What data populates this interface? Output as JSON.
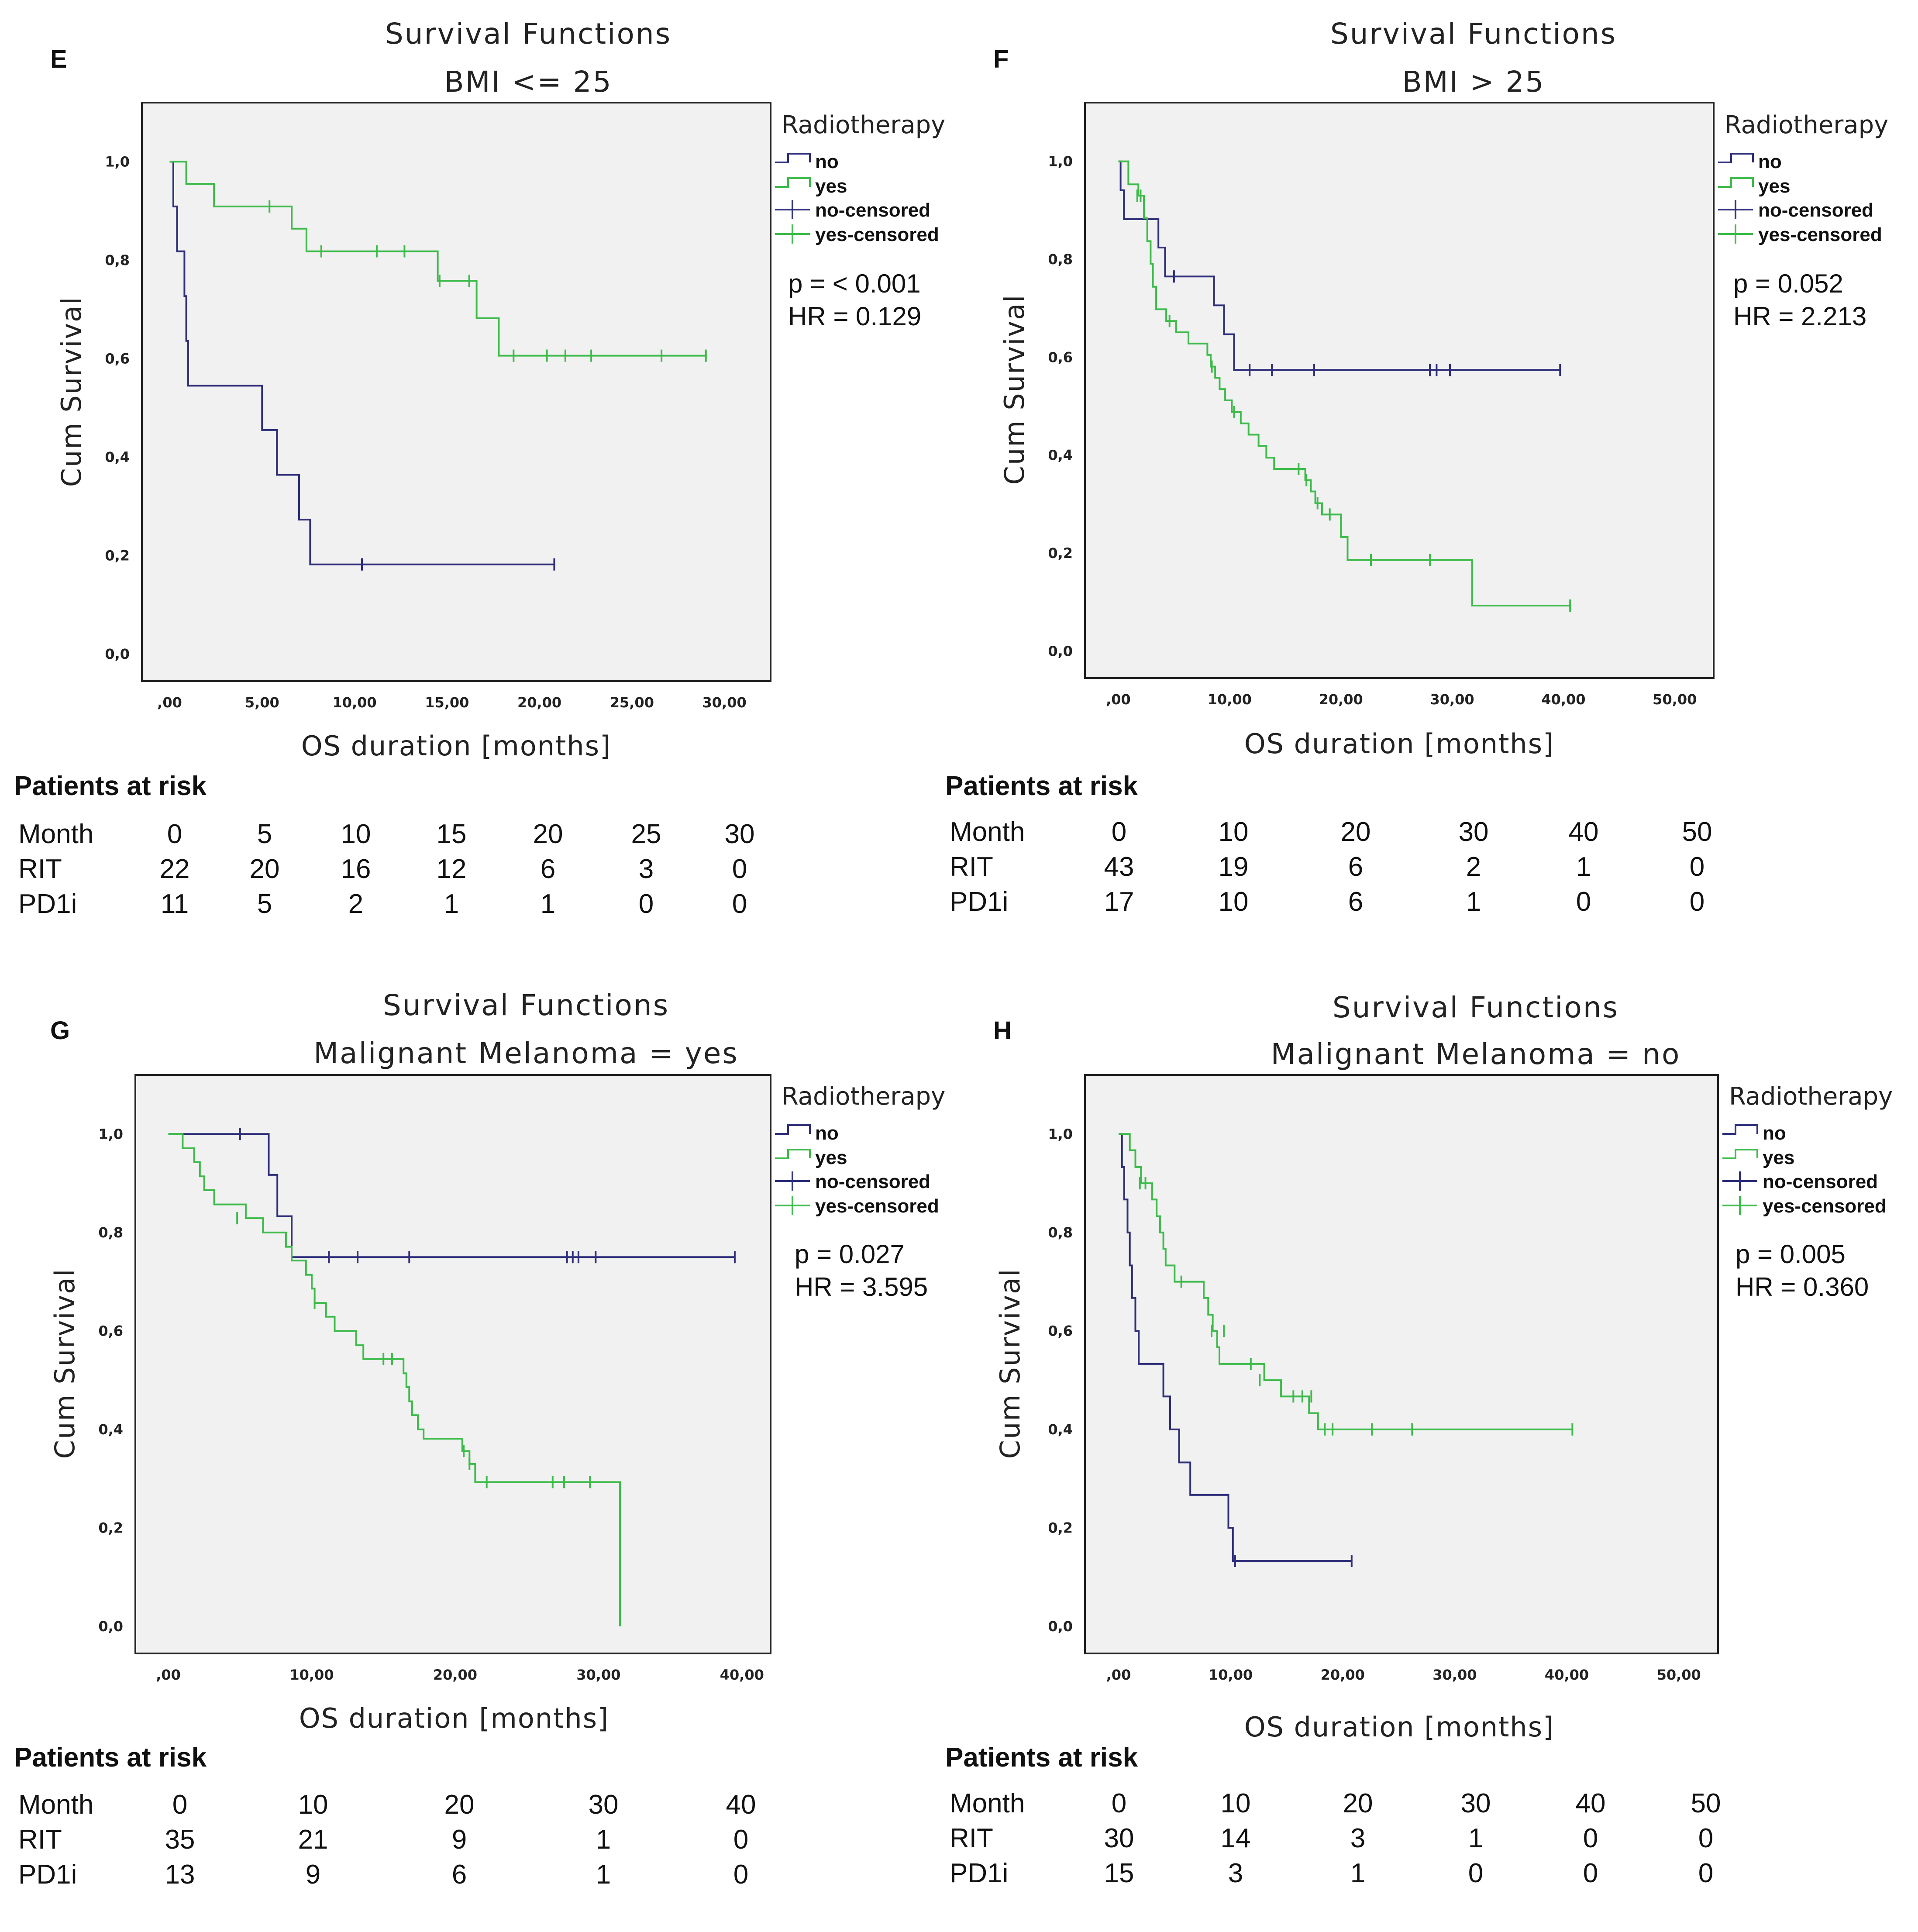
{
  "legend": {
    "title": "Radiotherapy",
    "items": [
      "no",
      "yes",
      "no-censored",
      "yes-censored"
    ]
  },
  "colors": {
    "no": "#2e2e7a",
    "yes": "#3dbb4a",
    "plot_bg": "#f1f1f1"
  },
  "common": {
    "risk_title": "Patients at risk",
    "row_labels": [
      "Month",
      "RIT",
      "PD1i"
    ]
  },
  "chart_data": [
    {
      "id": "E",
      "type": "line",
      "title": "Survival Functions",
      "subtitle": "BMI <= 25",
      "xlabel": "OS duration [months]",
      "ylabel": "Cum Survival",
      "xlim": [
        -1.5,
        32.5
      ],
      "ylim": [
        -0.055,
        1.12
      ],
      "xticks": [
        0,
        5,
        10,
        15,
        20,
        25,
        30
      ],
      "xtick_labels": [
        ",00",
        "5,00",
        "10,00",
        "15,00",
        "20,00",
        "25,00",
        "30,00"
      ],
      "yticks": [
        0,
        0.2,
        0.4,
        0.6,
        0.8,
        1.0
      ],
      "ytick_labels": [
        "0,0",
        "0,2",
        "0,4",
        "0,6",
        "0,8",
        "1,0"
      ],
      "stats": [
        "p = < 0.001",
        "HR = 0.129"
      ],
      "series": [
        {
          "name": "no",
          "steps": [
            [
              0,
              1.0
            ],
            [
              0.2,
              0.909
            ],
            [
              0.4,
              0.818
            ],
            [
              0.8,
              0.727
            ],
            [
              0.9,
              0.636
            ],
            [
              1.0,
              0.545
            ],
            [
              5.0,
              0.455
            ],
            [
              5.8,
              0.364
            ],
            [
              7.0,
              0.273
            ],
            [
              7.6,
              0.182
            ],
            [
              20.8,
              0.182
            ]
          ],
          "censored": [
            [
              10.4,
              0.182
            ],
            [
              20.8,
              0.182
            ]
          ]
        },
        {
          "name": "yes",
          "steps": [
            [
              0,
              1.0
            ],
            [
              0.9,
              0.955
            ],
            [
              2.4,
              0.909
            ],
            [
              6.6,
              0.864
            ],
            [
              7.4,
              0.818
            ],
            [
              14.5,
              0.758
            ],
            [
              16.6,
              0.682
            ],
            [
              17.8,
              0.606
            ],
            [
              29.0,
              0.606
            ]
          ],
          "censored": [
            [
              5.4,
              0.909
            ],
            [
              8.2,
              0.818
            ],
            [
              11.2,
              0.818
            ],
            [
              12.7,
              0.818
            ],
            [
              14.6,
              0.758
            ],
            [
              16.2,
              0.758
            ],
            [
              18.6,
              0.606
            ],
            [
              20.4,
              0.606
            ],
            [
              21.4,
              0.606
            ],
            [
              22.8,
              0.606
            ],
            [
              26.6,
              0.606
            ],
            [
              29.0,
              0.606
            ]
          ]
        }
      ],
      "risk_table": {
        "month": [
          "0",
          "5",
          "10",
          "15",
          "20",
          "25",
          "30"
        ],
        "rit": [
          "22",
          "20",
          "16",
          "12",
          "6",
          "3",
          "0"
        ],
        "pd1i": [
          "11",
          "5",
          "2",
          "1",
          "1",
          "0",
          "0"
        ]
      }
    },
    {
      "id": "F",
      "type": "line",
      "title": "Survival Functions",
      "subtitle": "BMI > 25",
      "xlabel": "OS duration [months]",
      "ylabel": "Cum Survival",
      "xlim": [
        -3.0,
        53.5
      ],
      "ylim": [
        -0.055,
        1.12
      ],
      "xticks": [
        0,
        10,
        20,
        30,
        40,
        50
      ],
      "xtick_labels": [
        ",00",
        "10,00",
        "20,00",
        "30,00",
        "40,00",
        "50,00"
      ],
      "yticks": [
        0,
        0.2,
        0.4,
        0.6,
        0.8,
        1.0
      ],
      "ytick_labels": [
        "0,0",
        "0,2",
        "0,4",
        "0,6",
        "0,8",
        "1,0"
      ],
      "stats": [
        "p = 0.052",
        "HR = 2.213"
      ],
      "series": [
        {
          "name": "no",
          "steps": [
            [
              0,
              1.0
            ],
            [
              0.2,
              0.941
            ],
            [
              0.5,
              0.882
            ],
            [
              3.6,
              0.824
            ],
            [
              4.2,
              0.765
            ],
            [
              8.6,
              0.706
            ],
            [
              9.5,
              0.647
            ],
            [
              10.4,
              0.574
            ],
            [
              39.7,
              0.574
            ]
          ],
          "censored": [
            [
              5.0,
              0.765
            ],
            [
              11.8,
              0.574
            ],
            [
              13.8,
              0.574
            ],
            [
              17.6,
              0.574
            ],
            [
              28.0,
              0.574
            ],
            [
              28.6,
              0.574
            ],
            [
              29.8,
              0.574
            ],
            [
              39.7,
              0.574
            ]
          ]
        },
        {
          "name": "yes",
          "steps": [
            [
              0,
              1.0
            ],
            [
              0.9,
              0.953
            ],
            [
              1.8,
              0.93
            ],
            [
              2.3,
              0.884
            ],
            [
              2.6,
              0.837
            ],
            [
              2.9,
              0.791
            ],
            [
              3.1,
              0.744
            ],
            [
              3.4,
              0.698
            ],
            [
              4.3,
              0.674
            ],
            [
              5.2,
              0.651
            ],
            [
              6.3,
              0.628
            ],
            [
              8.0,
              0.605
            ],
            [
              8.3,
              0.581
            ],
            [
              8.7,
              0.558
            ],
            [
              9.1,
              0.535
            ],
            [
              9.6,
              0.512
            ],
            [
              10.2,
              0.488
            ],
            [
              11.0,
              0.465
            ],
            [
              11.7,
              0.442
            ],
            [
              12.6,
              0.419
            ],
            [
              13.3,
              0.395
            ],
            [
              14.0,
              0.372
            ],
            [
              16.8,
              0.349
            ],
            [
              17.3,
              0.326
            ],
            [
              17.7,
              0.302
            ],
            [
              18.3,
              0.279
            ],
            [
              20.0,
              0.233
            ],
            [
              20.6,
              0.186
            ],
            [
              31.8,
              0.093
            ],
            [
              40.6,
              0.093
            ]
          ],
          "censored": [
            [
              1.7,
              0.93
            ],
            [
              2.0,
              0.93
            ],
            [
              4.6,
              0.674
            ],
            [
              8.4,
              0.581
            ],
            [
              10.4,
              0.488
            ],
            [
              16.2,
              0.372
            ],
            [
              16.9,
              0.349
            ],
            [
              17.9,
              0.302
            ],
            [
              19.0,
              0.279
            ],
            [
              22.7,
              0.186
            ],
            [
              28.0,
              0.186
            ],
            [
              40.6,
              0.093
            ]
          ]
        }
      ],
      "risk_table": {
        "month": [
          "0",
          "10",
          "20",
          "30",
          "40",
          "50"
        ],
        "rit": [
          "43",
          "19",
          "6",
          "2",
          "1",
          "0"
        ],
        "pd1i": [
          "17",
          "10",
          "6",
          "1",
          "0",
          "0"
        ]
      }
    },
    {
      "id": "G",
      "type": "line",
      "title": "Survival Functions",
      "subtitle": "Malignant Melanoma = yes",
      "xlabel": "OS duration [months]",
      "ylabel": "Cum Survival",
      "xlim": [
        -2.3,
        42.0
      ],
      "ylim": [
        -0.055,
        1.12
      ],
      "xticks": [
        0,
        10,
        20,
        30,
        40
      ],
      "xtick_labels": [
        ",00",
        "10,00",
        "20,00",
        "30,00",
        "40,00"
      ],
      "yticks": [
        0,
        0.2,
        0.4,
        0.6,
        0.8,
        1.0
      ],
      "ytick_labels": [
        "0,0",
        "0,2",
        "0,4",
        "0,6",
        "0,8",
        "1,0"
      ],
      "stats": [
        "p = 0.027",
        "HR = 3.595"
      ],
      "series": [
        {
          "name": "no",
          "steps": [
            [
              0,
              1.0
            ],
            [
              7.0,
              0.917
            ],
            [
              7.6,
              0.833
            ],
            [
              8.6,
              0.75
            ],
            [
              39.5,
              0.75
            ]
          ],
          "censored": [
            [
              5.0,
              1.0
            ],
            [
              11.2,
              0.75
            ],
            [
              13.2,
              0.75
            ],
            [
              16.8,
              0.75
            ],
            [
              27.8,
              0.75
            ],
            [
              28.2,
              0.75
            ],
            [
              28.6,
              0.75
            ],
            [
              29.8,
              0.75
            ],
            [
              39.5,
              0.75
            ]
          ]
        },
        {
          "name": "yes",
          "steps": [
            [
              0,
              1.0
            ],
            [
              1.0,
              0.971
            ],
            [
              1.8,
              0.943
            ],
            [
              2.2,
              0.914
            ],
            [
              2.5,
              0.886
            ],
            [
              3.2,
              0.857
            ],
            [
              5.4,
              0.829
            ],
            [
              6.6,
              0.8
            ],
            [
              8.2,
              0.771
            ],
            [
              8.6,
              0.743
            ],
            [
              9.6,
              0.714
            ],
            [
              10.0,
              0.686
            ],
            [
              10.2,
              0.657
            ],
            [
              11.0,
              0.629
            ],
            [
              11.6,
              0.6
            ],
            [
              13.1,
              0.571
            ],
            [
              13.6,
              0.543
            ],
            [
              16.4,
              0.514
            ],
            [
              16.6,
              0.486
            ],
            [
              16.8,
              0.457
            ],
            [
              17.0,
              0.429
            ],
            [
              17.4,
              0.4
            ],
            [
              17.8,
              0.381
            ],
            [
              20.5,
              0.356
            ],
            [
              21.0,
              0.33
            ],
            [
              21.4,
              0.293
            ],
            [
              31.5,
              0.0
            ]
          ],
          "censored": [
            [
              4.8,
              0.829
            ],
            [
              10.2,
              0.657
            ],
            [
              15.0,
              0.543
            ],
            [
              15.6,
              0.543
            ],
            [
              20.6,
              0.356
            ],
            [
              21.0,
              0.33
            ],
            [
              22.2,
              0.293
            ],
            [
              26.8,
              0.293
            ],
            [
              27.6,
              0.293
            ],
            [
              29.4,
              0.293
            ]
          ]
        }
      ],
      "risk_table": {
        "month": [
          "0",
          "10",
          "20",
          "30",
          "40"
        ],
        "rit": [
          "35",
          "21",
          "9",
          "1",
          "0"
        ],
        "pd1i": [
          "13",
          "9",
          "6",
          "1",
          "0"
        ]
      }
    },
    {
      "id": "H",
      "type": "line",
      "title": "Survival Functions",
      "subtitle": "Malignant Melanoma = no",
      "xlabel": "OS duration [months]",
      "ylabel": "Cum Survival",
      "xlim": [
        -3.0,
        53.5
      ],
      "ylim": [
        -0.055,
        1.12
      ],
      "xticks": [
        0,
        10,
        20,
        30,
        40,
        50
      ],
      "xtick_labels": [
        ",00",
        "10,00",
        "20,00",
        "30,00",
        "40,00",
        "50,00"
      ],
      "yticks": [
        0,
        0.2,
        0.4,
        0.6,
        0.8,
        1.0
      ],
      "ytick_labels": [
        "0,0",
        "0,2",
        "0,4",
        "0,6",
        "0,8",
        "1,0"
      ],
      "stats": [
        "p = 0.005",
        "HR = 0.360"
      ],
      "series": [
        {
          "name": "no",
          "steps": [
            [
              0,
              1.0
            ],
            [
              0.3,
              0.933
            ],
            [
              0.5,
              0.867
            ],
            [
              0.8,
              0.8
            ],
            [
              1.0,
              0.733
            ],
            [
              1.2,
              0.667
            ],
            [
              1.5,
              0.6
            ],
            [
              1.8,
              0.533
            ],
            [
              4.0,
              0.467
            ],
            [
              4.6,
              0.4
            ],
            [
              5.4,
              0.333
            ],
            [
              6.4,
              0.267
            ],
            [
              9.8,
              0.2
            ],
            [
              10.2,
              0.133
            ],
            [
              20.8,
              0.133
            ]
          ],
          "censored": [
            [
              10.4,
              0.133
            ],
            [
              20.8,
              0.133
            ]
          ]
        },
        {
          "name": "yes",
          "steps": [
            [
              0,
              1.0
            ],
            [
              1.0,
              0.967
            ],
            [
              1.5,
              0.933
            ],
            [
              2.0,
              0.9
            ],
            [
              3.0,
              0.867
            ],
            [
              3.4,
              0.833
            ],
            [
              3.7,
              0.8
            ],
            [
              4.0,
              0.767
            ],
            [
              4.2,
              0.733
            ],
            [
              5.0,
              0.7
            ],
            [
              7.6,
              0.667
            ],
            [
              8.0,
              0.633
            ],
            [
              8.4,
              0.6
            ],
            [
              8.8,
              0.567
            ],
            [
              9.0,
              0.533
            ],
            [
              13.0,
              0.5
            ],
            [
              14.5,
              0.467
            ],
            [
              17.0,
              0.433
            ],
            [
              17.8,
              0.4
            ],
            [
              40.5,
              0.4
            ]
          ],
          "censored": [
            [
              1.9,
              0.9
            ],
            [
              2.4,
              0.9
            ],
            [
              5.6,
              0.7
            ],
            [
              8.3,
              0.6
            ],
            [
              9.4,
              0.6
            ],
            [
              11.8,
              0.533
            ],
            [
              12.6,
              0.5
            ],
            [
              15.6,
              0.467
            ],
            [
              16.4,
              0.467
            ],
            [
              17.2,
              0.467
            ],
            [
              18.4,
              0.4
            ],
            [
              19.1,
              0.4
            ],
            [
              22.6,
              0.4
            ],
            [
              26.2,
              0.4
            ],
            [
              40.5,
              0.4
            ]
          ]
        }
      ],
      "risk_table": {
        "month": [
          "0",
          "10",
          "20",
          "30",
          "40",
          "50"
        ],
        "rit": [
          "30",
          "14",
          "3",
          "1",
          "0",
          "0"
        ],
        "pd1i": [
          "15",
          "3",
          "1",
          "0",
          "0",
          "0"
        ]
      }
    }
  ]
}
